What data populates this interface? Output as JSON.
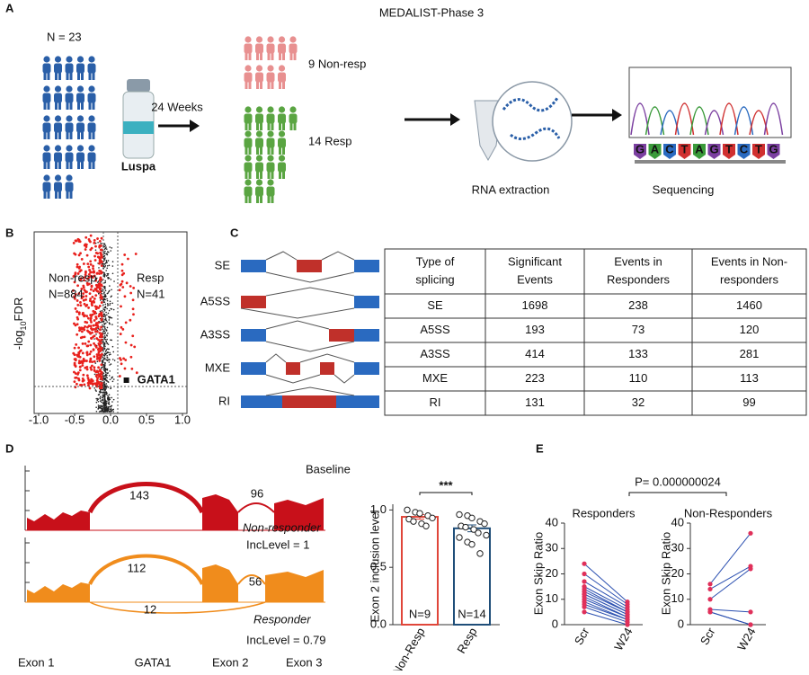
{
  "panel_a": {
    "label": "A",
    "title": "MEDALIST-Phase 3",
    "cohort": "N = 23",
    "drug": "Luspa",
    "duration": "24 Weeks",
    "non_resp": "9 Non-resp",
    "resp": "14 Resp",
    "step1": "RNA extraction",
    "step2": "Sequencing",
    "sequence": [
      "G",
      "A",
      "C",
      "T",
      "A",
      "G",
      "T",
      "C",
      "T",
      "G"
    ]
  },
  "panel_b": {
    "label": "B"
  },
  "panel_c": {
    "label": "C",
    "events": [
      "SE",
      "A5SS",
      "A3SS",
      "MXE",
      "RI"
    ],
    "table": {
      "header": [
        [
          "Type of",
          "splicing"
        ],
        [
          "Significant",
          "Events"
        ],
        [
          "Events in",
          "Responders"
        ],
        [
          "Events in Non-",
          "responders"
        ]
      ],
      "rows": [
        [
          "SE",
          1698,
          238,
          1460
        ],
        [
          "A5SS",
          193,
          73,
          120
        ],
        [
          "A3SS",
          414,
          133,
          281
        ],
        [
          "MXE",
          223,
          110,
          113
        ],
        [
          "RI",
          131,
          32,
          99
        ]
      ]
    }
  },
  "panel_d": {
    "label": "D",
    "baseline": "Baseline",
    "nonresponder": "Non-responder",
    "inc1": "IncLevel = 1",
    "responder": "Responder",
    "inc2": "IncLevel = 0.79",
    "junctions_top": [
      143,
      96
    ],
    "junctions_bottom": [
      112,
      56,
      12
    ],
    "exons": [
      "Exon 1",
      "Exon 2",
      "Exon 3"
    ],
    "gene": "GATA1"
  },
  "panel_e": {
    "label": "E",
    "comparison": "P= 0.000000024"
  },
  "chart_data": [
    {
      "type": "scatter",
      "y_label": [
        "-log",
        "10",
        "FDR"
      ],
      "xlim": [
        -1.1,
        1.1
      ],
      "xticks": [
        {
          "value": -1,
          "label": "-1.0"
        },
        {
          "value": -0.5,
          "label": "-0.5"
        },
        {
          "value": 0,
          "label": "0.0"
        },
        {
          "value": 0.5,
          "label": "0.5"
        },
        {
          "value": 1,
          "label": "1.0"
        }
      ],
      "annotations": [
        "Non-resp",
        "N=884",
        "Resp",
        "N=41"
      ],
      "highlight": {
        "label": "GATA1",
        "x": 0.22
      }
    },
    {
      "type": "bar",
      "y_label": "Exon 2 inclusion level",
      "categories": [
        "Non-Resp",
        "Resp"
      ],
      "values": [
        0.94,
        0.84
      ],
      "errors": [
        0.02,
        0.03
      ],
      "colors": [
        "#e0463a",
        "#1f4e79"
      ],
      "ylim": [
        0,
        1.05
      ],
      "yticks": [
        {
          "value": 0,
          "label": "0.0"
        },
        {
          "value": 0.5,
          "label": "0.5"
        },
        {
          "value": 1,
          "label": "1.0"
        }
      ],
      "points": [
        [
          1.0,
          0.98,
          0.97,
          0.95,
          0.93,
          0.92,
          0.9,
          0.88,
          0.86
        ],
        [
          0.96,
          0.95,
          0.93,
          0.9,
          0.88,
          0.86,
          0.85,
          0.83,
          0.8,
          0.78,
          0.76,
          0.72,
          0.7,
          0.62
        ]
      ],
      "n_labels": [
        "N=9",
        "N=14"
      ],
      "significance": "***"
    },
    {
      "type": "line",
      "title": "Responders",
      "y_label": "Exon Skip Ratio",
      "categories": [
        "Scr",
        "W24"
      ],
      "color": "#2a4fb0",
      "point_color": "#e0305a",
      "ylim": [
        0,
        40
      ],
      "yticks": [
        0,
        10,
        20,
        30,
        40
      ],
      "series": [
        {
          "values": [
            24,
            9
          ]
        },
        {
          "values": [
            20,
            8
          ]
        },
        {
          "values": [
            17,
            7
          ]
        },
        {
          "values": [
            15,
            6
          ]
        },
        {
          "values": [
            14,
            5
          ]
        },
        {
          "values": [
            13,
            5
          ]
        },
        {
          "values": [
            12,
            4
          ]
        },
        {
          "values": [
            12,
            4
          ]
        },
        {
          "values": [
            11,
            3
          ]
        },
        {
          "values": [
            10,
            3
          ]
        },
        {
          "values": [
            9,
            2
          ]
        },
        {
          "values": [
            8,
            2
          ]
        },
        {
          "values": [
            7,
            1
          ]
        },
        {
          "values": [
            5,
            0
          ]
        }
      ]
    },
    {
      "type": "line",
      "title": "Non-Responders",
      "y_label": "Exon Skip Ratio",
      "categories": [
        "Scr",
        "W24"
      ],
      "color": "#2a4fb0",
      "point_color": "#e0305a",
      "ylim": [
        0,
        40
      ],
      "yticks": [
        0,
        10,
        20,
        30,
        40
      ],
      "series": [
        {
          "values": [
            16,
            36
          ]
        },
        {
          "values": [
            14,
            23
          ]
        },
        {
          "values": [
            10,
            22
          ]
        },
        {
          "values": [
            6,
            5
          ]
        },
        {
          "values": [
            5,
            0
          ]
        },
        {
          "values": [
            5,
            0
          ]
        }
      ]
    }
  ]
}
